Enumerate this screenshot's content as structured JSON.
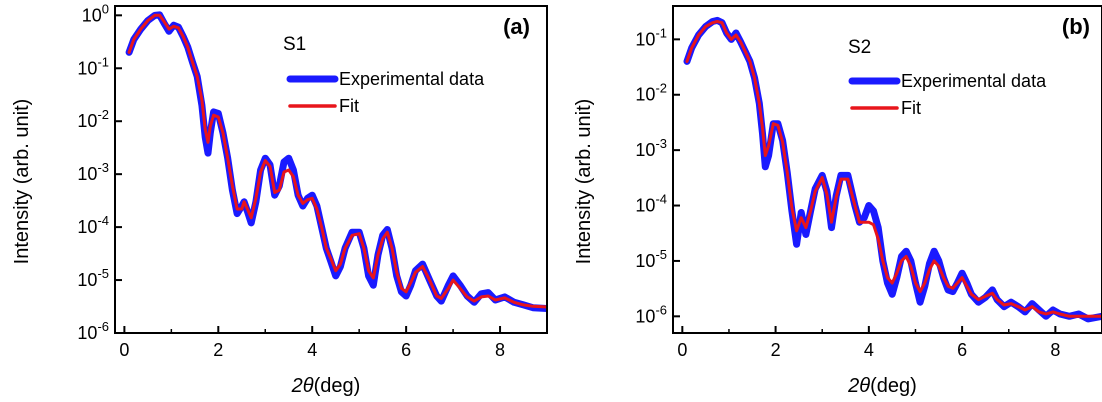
{
  "chart_data": [
    {
      "type": "line",
      "panel_label": "(a)",
      "sample_label": "S1",
      "xlabel_symbol": "2θ",
      "xlabel_unit": "(deg)",
      "ylabel": "Intensity (arb. unit)",
      "xlim": [
        -0.2,
        9
      ],
      "ylim": [
        1e-06,
        1.5
      ],
      "yscale": "log",
      "x_ticks": [
        0,
        2,
        4,
        6,
        8
      ],
      "x_tick_labels": [
        "0",
        "2",
        "4",
        "6",
        "8"
      ],
      "y_ticks": [
        1e-06,
        1e-05,
        0.0001,
        0.001,
        0.01,
        0.1,
        1
      ],
      "y_tick_labels": [
        {
          "base": "10",
          "exp": "-6"
        },
        {
          "base": "10",
          "exp": "-5"
        },
        {
          "base": "10",
          "exp": "-4"
        },
        {
          "base": "10",
          "exp": "-3"
        },
        {
          "base": "10",
          "exp": "-2"
        },
        {
          "base": "10",
          "exp": "-1"
        },
        {
          "base": "10",
          "exp": "0"
        }
      ],
      "legend_position": "top-right",
      "series": [
        {
          "name": "Experimental data",
          "color": "#1a1aff",
          "x": [
            0.1,
            0.2,
            0.35,
            0.5,
            0.65,
            0.75,
            0.85,
            0.95,
            1.05,
            1.15,
            1.25,
            1.35,
            1.45,
            1.55,
            1.65,
            1.72,
            1.78,
            1.83,
            1.9,
            2.0,
            2.1,
            2.2,
            2.3,
            2.4,
            2.5,
            2.55,
            2.62,
            2.7,
            2.8,
            2.9,
            3.0,
            3.1,
            3.2,
            3.3,
            3.4,
            3.5,
            3.6,
            3.7,
            3.8,
            3.9,
            4.0,
            4.1,
            4.2,
            4.3,
            4.4,
            4.5,
            4.6,
            4.7,
            4.85,
            5.0,
            5.1,
            5.2,
            5.3,
            5.4,
            5.5,
            5.6,
            5.7,
            5.8,
            5.9,
            6.0,
            6.1,
            6.2,
            6.35,
            6.5,
            6.65,
            6.75,
            6.9,
            7.0,
            7.15,
            7.3,
            7.45,
            7.6,
            7.75,
            7.9,
            8.1,
            8.3,
            8.5,
            8.7,
            9.0
          ],
          "y": [
            0.2,
            0.35,
            0.55,
            0.8,
            1.0,
            1.02,
            0.7,
            0.5,
            0.65,
            0.6,
            0.4,
            0.25,
            0.13,
            0.07,
            0.02,
            0.005,
            0.0025,
            0.006,
            0.015,
            0.014,
            0.006,
            0.002,
            0.0005,
            0.00018,
            0.00025,
            0.0003,
            0.0002,
            0.00012,
            0.0003,
            0.0012,
            0.002,
            0.0015,
            0.0004,
            0.0006,
            0.0017,
            0.002,
            0.0012,
            0.0004,
            0.00025,
            0.00035,
            0.0004,
            0.00025,
            0.0001,
            4e-05,
            2.2e-05,
            1.2e-05,
            1.8e-05,
            4e-05,
            8e-05,
            8e-05,
            4e-05,
            1.2e-05,
            8e-06,
            3e-05,
            7e-05,
            9e-05,
            4e-05,
            1.2e-05,
            6e-06,
            5e-06,
            8e-06,
            1.5e-05,
            2e-05,
            1e-05,
            5e-06,
            4e-06,
            8e-06,
            1.2e-05,
            8e-06,
            5e-06,
            3.8e-06,
            5.5e-06,
            5.8e-06,
            4.2e-06,
            4.8e-06,
            3.8e-06,
            3.4e-06,
            3e-06,
            2.9e-06
          ]
        },
        {
          "name": "Fit",
          "color": "#e8151b",
          "x": [
            0.1,
            0.2,
            0.35,
            0.5,
            0.65,
            0.75,
            0.85,
            0.95,
            1.05,
            1.15,
            1.25,
            1.35,
            1.45,
            1.55,
            1.65,
            1.72,
            1.78,
            1.83,
            1.9,
            2.0,
            2.1,
            2.2,
            2.3,
            2.4,
            2.5,
            2.55,
            2.62,
            2.7,
            2.8,
            2.9,
            3.0,
            3.1,
            3.2,
            3.3,
            3.4,
            3.5,
            3.6,
            3.7,
            3.8,
            3.9,
            4.0,
            4.1,
            4.2,
            4.3,
            4.4,
            4.5,
            4.6,
            4.7,
            4.85,
            5.0,
            5.1,
            5.2,
            5.3,
            5.4,
            5.5,
            5.6,
            5.7,
            5.8,
            5.9,
            6.0,
            6.1,
            6.2,
            6.35,
            6.5,
            6.65,
            6.75,
            6.9,
            7.0,
            7.15,
            7.3,
            7.45,
            7.6,
            7.75,
            7.9,
            8.1,
            8.3,
            8.5,
            8.7,
            9.0
          ],
          "y": [
            0.2,
            0.35,
            0.55,
            0.8,
            1.0,
            1.0,
            0.75,
            0.55,
            0.62,
            0.58,
            0.4,
            0.25,
            0.13,
            0.07,
            0.025,
            0.007,
            0.004,
            0.008,
            0.013,
            0.012,
            0.006,
            0.002,
            0.0006,
            0.00022,
            0.00022,
            0.0003,
            0.00022,
            0.00015,
            0.00035,
            0.0011,
            0.0018,
            0.0014,
            0.00045,
            0.0005,
            0.0011,
            0.0012,
            0.0009,
            0.0004,
            0.00028,
            0.00033,
            0.00035,
            0.00022,
            0.0001,
            4e-05,
            2.5e-05,
            1.5e-05,
            2e-05,
            4e-05,
            7e-05,
            7.5e-05,
            4e-05,
            1.5e-05,
            1.1e-05,
            3e-05,
            6e-05,
            8e-05,
            4e-05,
            1.4e-05,
            7e-06,
            6e-06,
            9e-06,
            1.4e-05,
            1.8e-05,
            1e-05,
            5e-06,
            4.5e-06,
            7e-06,
            1e-05,
            7e-06,
            4.8e-06,
            4e-06,
            4.8e-06,
            5e-06,
            4.2e-06,
            4.6e-06,
            3.8e-06,
            3.4e-06,
            3.2e-06,
            3.1e-06
          ]
        }
      ]
    },
    {
      "type": "line",
      "panel_label": "(b)",
      "sample_label": "S2",
      "xlabel_symbol": "2θ",
      "xlabel_unit": "(deg)",
      "ylabel": "Intensity (arb. unit)",
      "xlim": [
        -0.2,
        9
      ],
      "ylim": [
        5e-07,
        0.4
      ],
      "yscale": "log",
      "x_ticks": [
        0,
        2,
        4,
        6,
        8
      ],
      "x_tick_labels": [
        "0",
        "2",
        "4",
        "6",
        "8"
      ],
      "y_ticks": [
        1e-06,
        1e-05,
        0.0001,
        0.001,
        0.01,
        0.1
      ],
      "y_tick_labels": [
        {
          "base": "10",
          "exp": "-6"
        },
        {
          "base": "10",
          "exp": "-5"
        },
        {
          "base": "10",
          "exp": "-4"
        },
        {
          "base": "10",
          "exp": "-3"
        },
        {
          "base": "10",
          "exp": "-2"
        },
        {
          "base": "10",
          "exp": "-1"
        }
      ],
      "legend_position": "top-right",
      "series": [
        {
          "name": "Experimental data",
          "color": "#1a1aff",
          "x": [
            0.1,
            0.2,
            0.35,
            0.5,
            0.65,
            0.75,
            0.85,
            0.95,
            1.05,
            1.15,
            1.25,
            1.35,
            1.45,
            1.55,
            1.65,
            1.72,
            1.78,
            1.85,
            1.95,
            2.05,
            2.15,
            2.25,
            2.35,
            2.45,
            2.55,
            2.65,
            2.75,
            2.85,
            3.0,
            3.1,
            3.2,
            3.3,
            3.4,
            3.55,
            3.7,
            3.8,
            3.9,
            4.0,
            4.1,
            4.2,
            4.3,
            4.4,
            4.5,
            4.6,
            4.7,
            4.8,
            4.9,
            5.0,
            5.1,
            5.2,
            5.3,
            5.4,
            5.5,
            5.6,
            5.7,
            5.8,
            5.9,
            6.0,
            6.1,
            6.2,
            6.35,
            6.5,
            6.65,
            6.75,
            6.9,
            7.05,
            7.2,
            7.35,
            7.5,
            7.65,
            7.8,
            7.95,
            8.1,
            8.3,
            8.5,
            8.7,
            9.0
          ],
          "y": [
            0.04,
            0.07,
            0.12,
            0.17,
            0.21,
            0.22,
            0.2,
            0.13,
            0.1,
            0.13,
            0.09,
            0.06,
            0.04,
            0.02,
            0.007,
            0.002,
            0.0005,
            0.0008,
            0.003,
            0.003,
            0.0015,
            0.0004,
            8e-05,
            2e-05,
            7.5e-05,
            3e-05,
            8e-05,
            0.0002,
            0.00035,
            0.00018,
            4e-05,
            0.00015,
            0.00035,
            0.00035,
            0.0001,
            5e-05,
            6e-05,
            0.0001,
            8e-05,
            4e-05,
            1e-05,
            4e-06,
            2.5e-06,
            5e-06,
            1.2e-05,
            1.5e-05,
            1e-05,
            4e-06,
            1.8e-06,
            3.5e-06,
            9e-06,
            1.5e-05,
            1e-05,
            5e-06,
            3e-06,
            2.8e-06,
            4e-06,
            6e-06,
            4e-06,
            2.5e-06,
            1.8e-06,
            2.2e-06,
            3e-06,
            2e-06,
            1.5e-06,
            1.8e-06,
            1.5e-06,
            1.2e-06,
            1.7e-06,
            1.3e-06,
            1e-06,
            1.3e-06,
            1.1e-06,
            1e-06,
            1.1e-06,
            9e-07,
            1e-06
          ]
        },
        {
          "name": "Fit",
          "color": "#e8151b",
          "x": [
            0.1,
            0.2,
            0.35,
            0.5,
            0.65,
            0.75,
            0.85,
            0.95,
            1.05,
            1.15,
            1.25,
            1.35,
            1.45,
            1.55,
            1.65,
            1.72,
            1.78,
            1.85,
            1.95,
            2.05,
            2.15,
            2.25,
            2.35,
            2.45,
            2.55,
            2.65,
            2.75,
            2.85,
            3.0,
            3.1,
            3.2,
            3.3,
            3.4,
            3.55,
            3.7,
            3.8,
            3.9,
            4.0,
            4.1,
            4.2,
            4.3,
            4.4,
            4.5,
            4.6,
            4.7,
            4.8,
            4.9,
            5.0,
            5.1,
            5.2,
            5.3,
            5.4,
            5.5,
            5.6,
            5.7,
            5.8,
            5.9,
            6.0,
            6.1,
            6.2,
            6.35,
            6.5,
            6.65,
            6.75,
            6.9,
            7.05,
            7.2,
            7.35,
            7.5,
            7.65,
            7.8,
            7.95,
            8.1,
            8.3,
            8.5,
            8.7,
            9.0
          ],
          "y": [
            0.04,
            0.07,
            0.12,
            0.17,
            0.2,
            0.21,
            0.2,
            0.13,
            0.1,
            0.12,
            0.09,
            0.06,
            0.04,
            0.02,
            0.007,
            0.0025,
            0.0008,
            0.0012,
            0.003,
            0.0028,
            0.0014,
            0.0004,
            9e-05,
            3.5e-05,
            6e-05,
            4e-05,
            8e-05,
            0.00018,
            0.00032,
            0.00016,
            5e-05,
            0.00014,
            0.0003,
            0.0003,
            0.0001,
            5e-05,
            5e-05,
            5e-05,
            4.5e-05,
            2.5e-05,
            1e-05,
            5e-06,
            4e-06,
            6e-06,
            1e-05,
            1.2e-05,
            8e-06,
            4e-06,
            2.8e-06,
            4e-06,
            7e-06,
            1e-05,
            8e-06,
            5e-06,
            3.5e-06,
            3.2e-06,
            4e-06,
            5e-06,
            3.5e-06,
            2.5e-06,
            2e-06,
            2.3e-06,
            2.6e-06,
            2e-06,
            1.6e-06,
            1.7e-06,
            1.5e-06,
            1.3e-06,
            1.5e-06,
            1.2e-06,
            1.1e-06,
            1.2e-06,
            1.1e-06,
            1e-06,
            1e-06,
            1e-06,
            1e-06
          ]
        }
      ]
    }
  ]
}
